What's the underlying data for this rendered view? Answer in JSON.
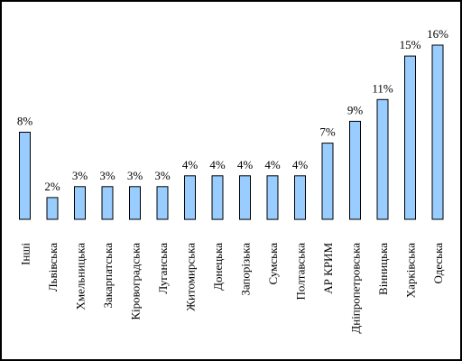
{
  "chart_data": {
    "type": "bar",
    "title": "",
    "xlabel": "",
    "ylabel": "",
    "value_suffix": "%",
    "ylim": [
      0,
      16
    ],
    "grid": false,
    "legend": "none",
    "bar_color": "#99ccff",
    "categories": [
      "Інші",
      "Львівська",
      "Хмельницька",
      "Закарпатська",
      "Кіровоградська",
      "Луганська",
      "Житомирська",
      "Донецька",
      "Запорізька",
      "Сумська",
      "Полтавська",
      "АР КРИМ",
      "Дніпропетровська",
      "Вінницька",
      "Харківська",
      "Одеська"
    ],
    "values": [
      8,
      2,
      3,
      3,
      3,
      3,
      4,
      4,
      4,
      4,
      4,
      7,
      9,
      11,
      15,
      16
    ]
  }
}
